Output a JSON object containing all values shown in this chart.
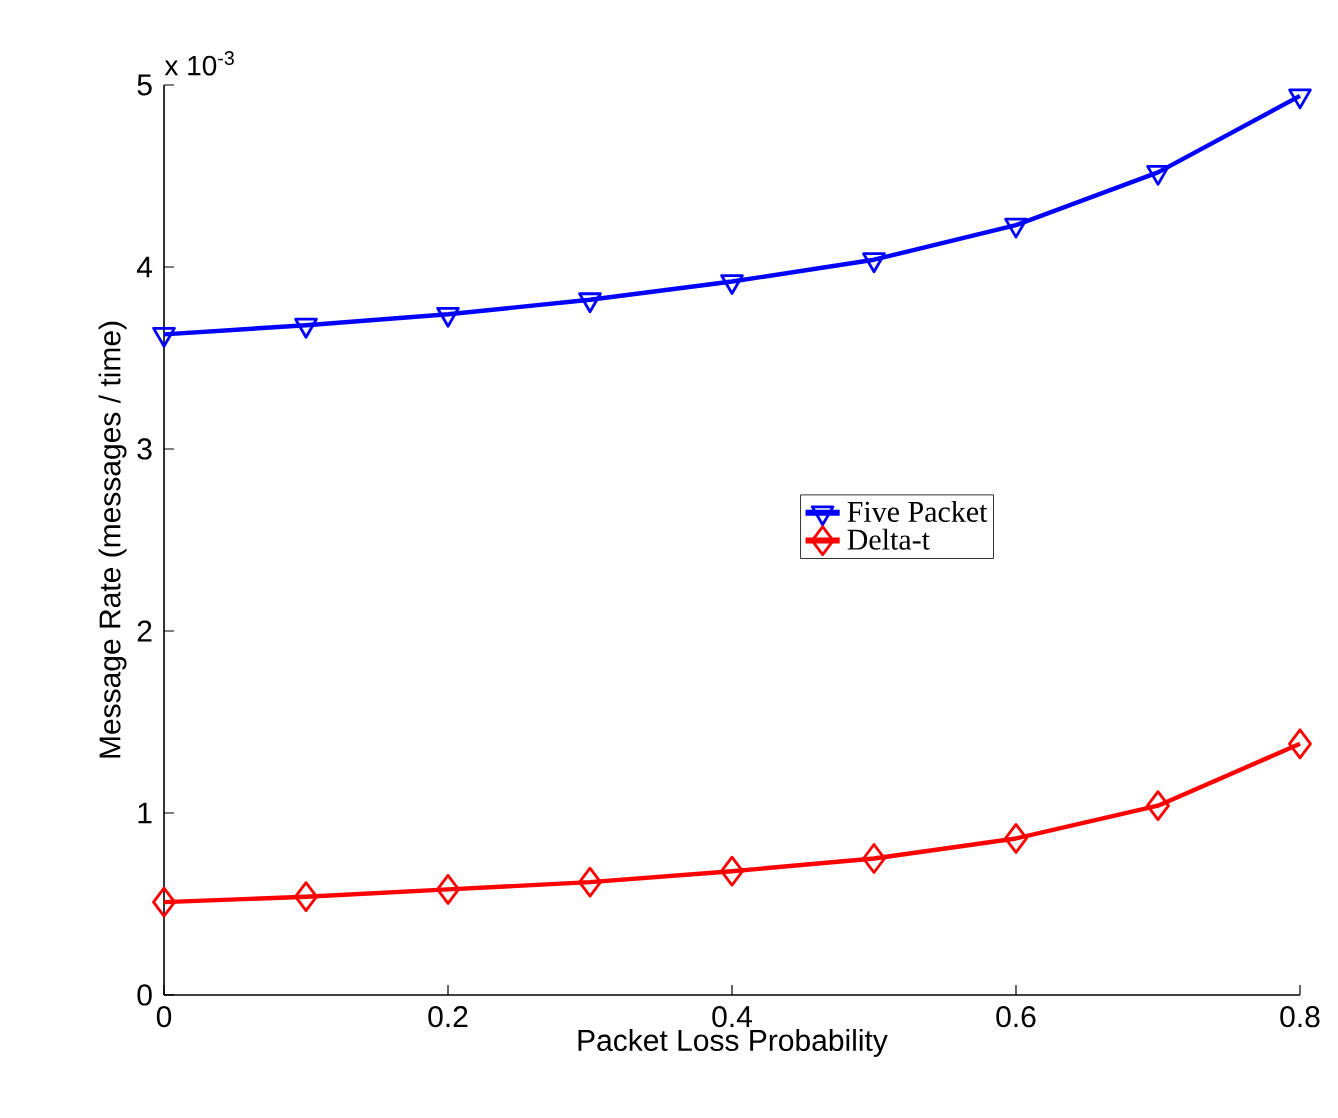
{
  "chart_data": {
    "type": "line",
    "xlabel": "Packet Loss Probability",
    "ylabel": "Message Rate (messages / time)",
    "x": [
      0,
      0.1,
      0.2,
      0.3,
      0.4,
      0.5,
      0.6,
      0.7,
      0.8
    ],
    "series": [
      {
        "name": "Five Packet",
        "color": "#0000ff",
        "marker": "triangle",
        "values": [
          3.63,
          3.68,
          3.74,
          3.82,
          3.92,
          4.04,
          4.23,
          4.52,
          4.94
        ]
      },
      {
        "name": "Delta-t",
        "color": "#ff0000",
        "marker": "diamond",
        "values": [
          0.51,
          0.54,
          0.58,
          0.62,
          0.68,
          0.75,
          0.86,
          1.04,
          1.38
        ]
      }
    ],
    "xlim": [
      0,
      0.8
    ],
    "ylim": [
      0,
      5
    ],
    "xticks": [
      0,
      0.2,
      0.4,
      0.6,
      0.8
    ],
    "yticks": [
      0,
      1,
      2,
      3,
      4,
      5
    ],
    "annotations": [
      "x 10$^{-3}$"
    ],
    "legend": "right",
    "grid": false,
    "line_style": "solid"
  }
}
